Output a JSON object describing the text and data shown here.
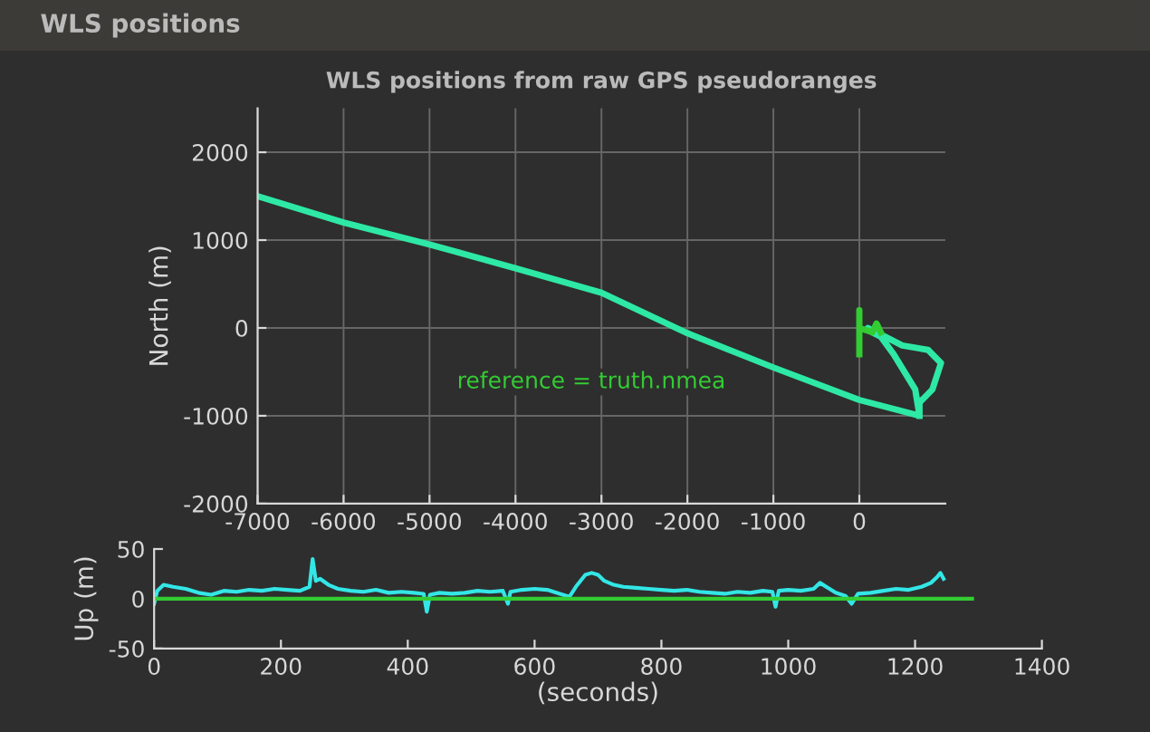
{
  "chart_data": [
    {
      "type": "line",
      "title": "WLS positions from raw GPS pseudoranges",
      "ylabel": "North (m)",
      "annotations": [
        "WLS positions",
        "reference = truth.nmea"
      ],
      "xlim": [
        -7000,
        1000
      ],
      "ylim": [
        -2000,
        2500
      ],
      "xticks": [
        -7000,
        -6000,
        -5000,
        -4000,
        -3000,
        -2000,
        -1000,
        0
      ],
      "yticks": [
        -2000,
        -1000,
        0,
        1000,
        2000
      ],
      "grid": true,
      "marker": "none",
      "line_style": "solid",
      "series": [
        {
          "color": "#2ee8a6",
          "x": [
            -7000,
            -6000,
            -5000,
            -4000,
            -3000,
            -2000,
            -1000,
            0,
            700,
            650,
            400,
            250,
            150,
            100,
            300,
            500,
            800,
            950,
            850,
            700,
            700
          ],
          "values": [
            1500,
            1200,
            950,
            680,
            400,
            -60,
            -450,
            -820,
            -1000,
            -700,
            -300,
            -100,
            -50,
            0,
            -100,
            -200,
            -250,
            -400,
            -700,
            -850,
            -1000
          ]
        },
        {
          "color": "#33cc33",
          "x": [
            0,
            0,
            0,
            150,
            200,
            250
          ],
          "values": [
            -300,
            200,
            0,
            -50,
            50,
            -50
          ]
        }
      ]
    },
    {
      "type": "line",
      "ylabel": "Up (m)",
      "xlabel": "(seconds)",
      "xlim": [
        0,
        1400
      ],
      "ylim": [
        -50,
        50
      ],
      "xticks": [
        0,
        200,
        400,
        600,
        800,
        1000,
        1200,
        1400
      ],
      "yticks": [
        -50,
        0,
        50
      ],
      "grid": false,
      "marker": "none",
      "line_style": "solid",
      "series": [
        {
          "color": "#33e6e6",
          "x": [
            0,
            5,
            15,
            30,
            50,
            70,
            90,
            110,
            130,
            150,
            170,
            190,
            210,
            230,
            245,
            250,
            255,
            262,
            275,
            290,
            310,
            330,
            350,
            370,
            390,
            410,
            425,
            430,
            435,
            450,
            470,
            490,
            510,
            530,
            550,
            558,
            562,
            580,
            600,
            620,
            640,
            655,
            665,
            680,
            690,
            700,
            710,
            725,
            740,
            760,
            780,
            800,
            820,
            840,
            860,
            880,
            900,
            920,
            940,
            960,
            975,
            980,
            985,
            1000,
            1020,
            1040,
            1050,
            1060,
            1075,
            1090,
            1100,
            1110,
            1130,
            1150,
            1170,
            1190,
            1210,
            1225,
            1235,
            1240,
            1245
          ],
          "values": [
            -5,
            8,
            14,
            12,
            10,
            6,
            4,
            8,
            7,
            9,
            8,
            10,
            9,
            8,
            12,
            40,
            18,
            20,
            14,
            10,
            8,
            7,
            9,
            6,
            7,
            6,
            5,
            -13,
            4,
            6,
            5,
            6,
            8,
            7,
            8,
            -5,
            7,
            9,
            10,
            9,
            5,
            2,
            12,
            24,
            26,
            24,
            18,
            14,
            12,
            11,
            10,
            9,
            8,
            9,
            7,
            6,
            5,
            7,
            6,
            8,
            7,
            -8,
            8,
            9,
            8,
            10,
            16,
            12,
            6,
            3,
            -5,
            5,
            6,
            8,
            10,
            9,
            12,
            16,
            22,
            26,
            20
          ]
        },
        {
          "color": "#33cc33",
          "x": [
            0,
            1290
          ],
          "values": [
            0,
            0
          ]
        }
      ]
    }
  ]
}
